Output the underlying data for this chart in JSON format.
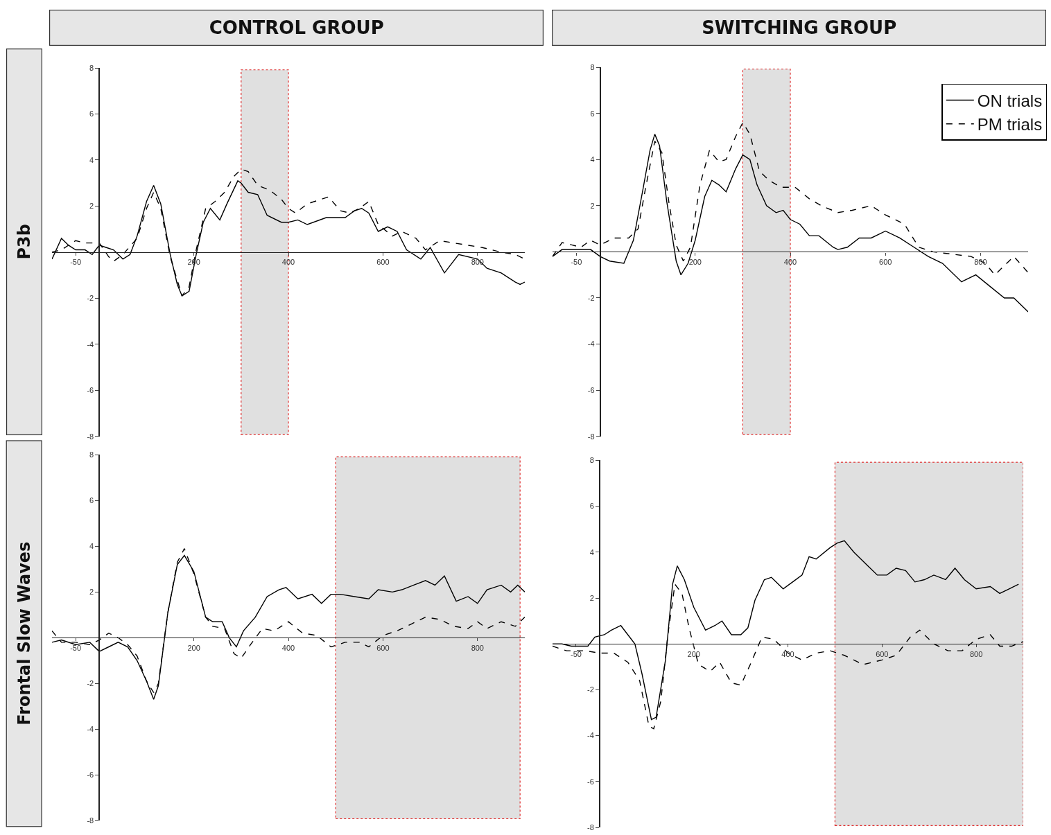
{
  "chart_data": [
    {
      "type": "line",
      "title": "CONTROL GROUP",
      "ylabel": "P3b",
      "xlim": [
        -100,
        900
      ],
      "ylim": [
        -8,
        8
      ],
      "xticks": [
        -50,
        200,
        400,
        600,
        800
      ],
      "yticks": [
        -8,
        -6,
        -4,
        -2,
        2,
        4,
        6,
        8
      ],
      "bands": [
        {
          "axis": "x",
          "from": 300,
          "to": 400,
          "color": "#e0e0e0"
        }
      ],
      "series": [
        {
          "color": "#000000",
          "line_style": "solid",
          "x": [
            -100,
            -80,
            -65,
            -50,
            -30,
            -15,
            0,
            15,
            30,
            50,
            65,
            80,
            100,
            115,
            130,
            150,
            165,
            175,
            190,
            205,
            220,
            235,
            255,
            270,
            293,
            300,
            315,
            335,
            355,
            385,
            400,
            420,
            440,
            480,
            520,
            540,
            555,
            570,
            590,
            610,
            630,
            650,
            680,
            700,
            730,
            760,
            800,
            820,
            850,
            880,
            890,
            900
          ],
          "values": [
            -0.3,
            0.6,
            0.3,
            0.1,
            0.1,
            -0.1,
            0.3,
            0.2,
            0.1,
            -0.3,
            -0.1,
            0.7,
            2.2,
            2.9,
            2.1,
            -0.1,
            -1.4,
            -1.9,
            -1.7,
            -0.1,
            1.3,
            1.9,
            1.4,
            2.1,
            3.1,
            3.0,
            2.6,
            2.5,
            1.6,
            1.3,
            1.3,
            1.4,
            1.2,
            1.5,
            1.5,
            1.8,
            1.9,
            1.7,
            0.9,
            1.1,
            0.9,
            0.1,
            -0.3,
            0.2,
            -0.9,
            -0.1,
            -0.3,
            -0.7,
            -0.9,
            -1.3,
            -1.4,
            -1.3
          ]
        },
        {
          "color": "#000000",
          "line_style": "dashed",
          "x": [
            -100,
            -80,
            -50,
            -30,
            0,
            20,
            30,
            50,
            80,
            100,
            115,
            130,
            150,
            175,
            190,
            205,
            225,
            245,
            265,
            285,
            300,
            315,
            335,
            360,
            385,
            400,
            415,
            440,
            470,
            485,
            510,
            530,
            550,
            570,
            590,
            620,
            640,
            670,
            690,
            720,
            750,
            780,
            810,
            850,
            880,
            900
          ],
          "values": [
            0.0,
            0.1,
            0.5,
            0.4,
            0.4,
            -0.2,
            -0.4,
            -0.1,
            0.6,
            1.9,
            2.6,
            1.9,
            -0.2,
            -1.9,
            -1.5,
            0.1,
            1.9,
            2.2,
            2.6,
            3.3,
            3.6,
            3.5,
            2.9,
            2.7,
            2.3,
            1.9,
            1.7,
            2.1,
            2.3,
            2.4,
            1.8,
            1.7,
            1.9,
            2.2,
            1.2,
            0.7,
            0.9,
            0.6,
            0.1,
            0.5,
            0.4,
            0.3,
            0.2,
            0.0,
            -0.1,
            -0.3
          ]
        }
      ]
    },
    {
      "type": "line",
      "title": "SWITCHING GROUP",
      "xlim": [
        -100,
        900
      ],
      "ylim": [
        -8,
        8
      ],
      "xticks": [
        -50,
        200,
        400,
        600,
        800
      ],
      "yticks": [
        -8,
        -6,
        -4,
        -2,
        2,
        4,
        6,
        8
      ],
      "legend": "top right",
      "bands": [
        {
          "axis": "x",
          "from": 300,
          "to": 400,
          "color": "#e0e0e0"
        }
      ],
      "series": [
        {
          "name": "ON trials",
          "color": "#000000",
          "line_style": "solid",
          "x": [
            -100,
            -80,
            -50,
            -20,
            0,
            20,
            50,
            70,
            90,
            105,
            115,
            125,
            140,
            160,
            170,
            185,
            200,
            220,
            235,
            250,
            265,
            285,
            300,
            315,
            330,
            350,
            370,
            385,
            400,
            420,
            440,
            460,
            490,
            500,
            520,
            545,
            570,
            600,
            630,
            660,
            690,
            720,
            760,
            790,
            820,
            850,
            870,
            900
          ],
          "values": [
            -0.2,
            0.1,
            0.1,
            0.1,
            -0.2,
            -0.4,
            -0.5,
            0.5,
            2.7,
            4.4,
            5.1,
            4.6,
            2.2,
            -0.4,
            -1.0,
            -0.5,
            0.5,
            2.4,
            3.1,
            2.9,
            2.6,
            3.6,
            4.2,
            4.0,
            2.9,
            2.0,
            1.7,
            1.8,
            1.4,
            1.2,
            0.7,
            0.7,
            0.2,
            0.1,
            0.2,
            0.6,
            0.6,
            0.9,
            0.6,
            0.2,
            -0.2,
            -0.5,
            -1.3,
            -1.0,
            -1.5,
            -2.0,
            -2.0,
            -2.6
          ]
        },
        {
          "name": "PM trials",
          "color": "#000000",
          "line_style": "dashed",
          "x": [
            -100,
            -80,
            -60,
            -40,
            -20,
            0,
            30,
            60,
            80,
            95,
            115,
            130,
            145,
            160,
            175,
            190,
            210,
            230,
            250,
            265,
            285,
            300,
            315,
            335,
            355,
            380,
            410,
            440,
            465,
            500,
            530,
            570,
            600,
            640,
            655,
            670,
            700,
            740,
            780,
            810,
            830,
            860,
            870,
            900
          ],
          "values": [
            -0.2,
            0.4,
            0.3,
            0.2,
            0.5,
            0.3,
            0.6,
            0.6,
            1.0,
            2.7,
            4.8,
            4.3,
            2.1,
            0.3,
            -0.4,
            0.2,
            2.9,
            4.4,
            3.9,
            4.0,
            5.0,
            5.6,
            5.1,
            3.5,
            3.1,
            2.8,
            2.8,
            2.3,
            2.0,
            1.7,
            1.8,
            2.0,
            1.6,
            1.2,
            0.7,
            0.2,
            0.0,
            -0.1,
            -0.2,
            -0.5,
            -1.0,
            -0.4,
            -0.2,
            -0.9
          ]
        }
      ]
    },
    {
      "type": "line",
      "ylabel": "Frontal Slow Waves",
      "xlim": [
        -100,
        900
      ],
      "ylim": [
        -8,
        8
      ],
      "xticks": [
        -50,
        200,
        400,
        600,
        800
      ],
      "yticks": [
        -8,
        -6,
        -4,
        -2,
        2,
        4,
        6,
        8
      ],
      "bands": [
        {
          "axis": "x",
          "from": 500,
          "to": 890,
          "color": "#e0e0e0"
        }
      ],
      "series": [
        {
          "color": "#000000",
          "line_style": "solid",
          "x": [
            -100,
            -80,
            -50,
            -20,
            0,
            20,
            40,
            60,
            80,
            100,
            115,
            125,
            145,
            165,
            180,
            200,
            225,
            240,
            260,
            275,
            290,
            305,
            330,
            355,
            380,
            395,
            420,
            450,
            470,
            490,
            510,
            540,
            570,
            590,
            620,
            640,
            665,
            690,
            710,
            730,
            755,
            780,
            800,
            820,
            850,
            870,
            885,
            900
          ],
          "values": [
            -0.2,
            -0.1,
            -0.3,
            -0.2,
            -0.6,
            -0.4,
            -0.2,
            -0.4,
            -1.0,
            -1.9,
            -2.7,
            -2.1,
            1.1,
            3.2,
            3.6,
            2.9,
            0.9,
            0.7,
            0.7,
            0.0,
            -0.4,
            0.3,
            0.9,
            1.8,
            2.1,
            2.2,
            1.7,
            1.9,
            1.5,
            1.9,
            1.9,
            1.8,
            1.7,
            2.1,
            2.0,
            2.1,
            2.3,
            2.5,
            2.3,
            2.7,
            1.6,
            1.8,
            1.5,
            2.1,
            2.3,
            2.0,
            2.3,
            2.0
          ]
        },
        {
          "color": "#000000",
          "line_style": "dashed",
          "x": [
            -100,
            -80,
            -50,
            -20,
            0,
            20,
            40,
            60,
            80,
            100,
            115,
            125,
            145,
            165,
            180,
            200,
            225,
            240,
            265,
            285,
            300,
            320,
            345,
            370,
            400,
            430,
            460,
            490,
            520,
            550,
            570,
            600,
            630,
            660,
            690,
            720,
            750,
            780,
            800,
            820,
            850,
            880,
            900
          ],
          "values": [
            0.3,
            -0.2,
            -0.2,
            -0.3,
            -0.1,
            0.2,
            0.0,
            -0.3,
            -0.8,
            -1.9,
            -2.4,
            -2.0,
            1.1,
            3.3,
            3.9,
            2.8,
            0.9,
            0.5,
            0.4,
            -0.7,
            -0.9,
            -0.3,
            0.4,
            0.3,
            0.7,
            0.2,
            0.1,
            -0.4,
            -0.2,
            -0.2,
            -0.4,
            0.1,
            0.3,
            0.6,
            0.9,
            0.8,
            0.5,
            0.4,
            0.7,
            0.4,
            0.7,
            0.5,
            0.9
          ]
        }
      ]
    },
    {
      "type": "line",
      "xlim": [
        -100,
        900
      ],
      "ylim": [
        -8,
        8
      ],
      "xticks": [
        -50,
        200,
        400,
        600,
        800
      ],
      "yticks": [
        -8,
        -6,
        -4,
        -2,
        2,
        4,
        6,
        8
      ],
      "bands": [
        {
          "axis": "x",
          "from": 500,
          "to": 900,
          "color": "#e0e0e0"
        }
      ],
      "series": [
        {
          "color": "#000000",
          "line_style": "solid",
          "x": [
            -100,
            -80,
            -60,
            -40,
            -25,
            -10,
            10,
            25,
            45,
            60,
            75,
            90,
            110,
            120,
            140,
            155,
            165,
            180,
            200,
            225,
            245,
            260,
            280,
            300,
            315,
            330,
            350,
            365,
            390,
            410,
            430,
            445,
            460,
            490,
            505,
            520,
            540,
            570,
            590,
            610,
            630,
            650,
            670,
            690,
            710,
            735,
            755,
            775,
            800,
            830,
            850,
            870,
            890
          ],
          "values": [
            0.0,
            0.0,
            -0.1,
            -0.1,
            -0.1,
            0.3,
            0.4,
            0.6,
            0.8,
            0.4,
            0.0,
            -1.3,
            -3.3,
            -3.2,
            -0.7,
            2.6,
            3.4,
            2.8,
            1.6,
            0.6,
            0.8,
            1.0,
            0.4,
            0.4,
            0.7,
            1.9,
            2.8,
            2.9,
            2.4,
            2.7,
            3.0,
            3.8,
            3.7,
            4.2,
            4.4,
            4.5,
            4.0,
            3.4,
            3.0,
            3.0,
            3.3,
            3.2,
            2.7,
            2.8,
            3.0,
            2.8,
            3.3,
            2.8,
            2.4,
            2.5,
            2.2,
            2.4,
            2.6
          ]
        },
        {
          "color": "#000000",
          "line_style": "dashed",
          "x": [
            -100,
            -70,
            -30,
            0,
            30,
            60,
            85,
            105,
            115,
            130,
            145,
            160,
            175,
            190,
            210,
            235,
            255,
            280,
            300,
            320,
            345,
            370,
            400,
            430,
            460,
            490,
            520,
            560,
            600,
            630,
            660,
            680,
            710,
            740,
            770,
            800,
            830,
            850,
            875,
            900
          ],
          "values": [
            -0.1,
            -0.3,
            -0.3,
            -0.4,
            -0.4,
            -0.8,
            -1.6,
            -3.6,
            -3.7,
            -2.5,
            0.4,
            2.6,
            2.2,
            0.7,
            -0.9,
            -1.2,
            -0.8,
            -1.7,
            -1.8,
            -0.9,
            0.3,
            0.2,
            -0.4,
            -0.7,
            -0.4,
            -0.3,
            -0.5,
            -0.9,
            -0.7,
            -0.5,
            0.3,
            0.6,
            0.0,
            -0.3,
            -0.3,
            0.2,
            0.4,
            -0.1,
            -0.1,
            0.1
          ]
        }
      ]
    }
  ]
}
